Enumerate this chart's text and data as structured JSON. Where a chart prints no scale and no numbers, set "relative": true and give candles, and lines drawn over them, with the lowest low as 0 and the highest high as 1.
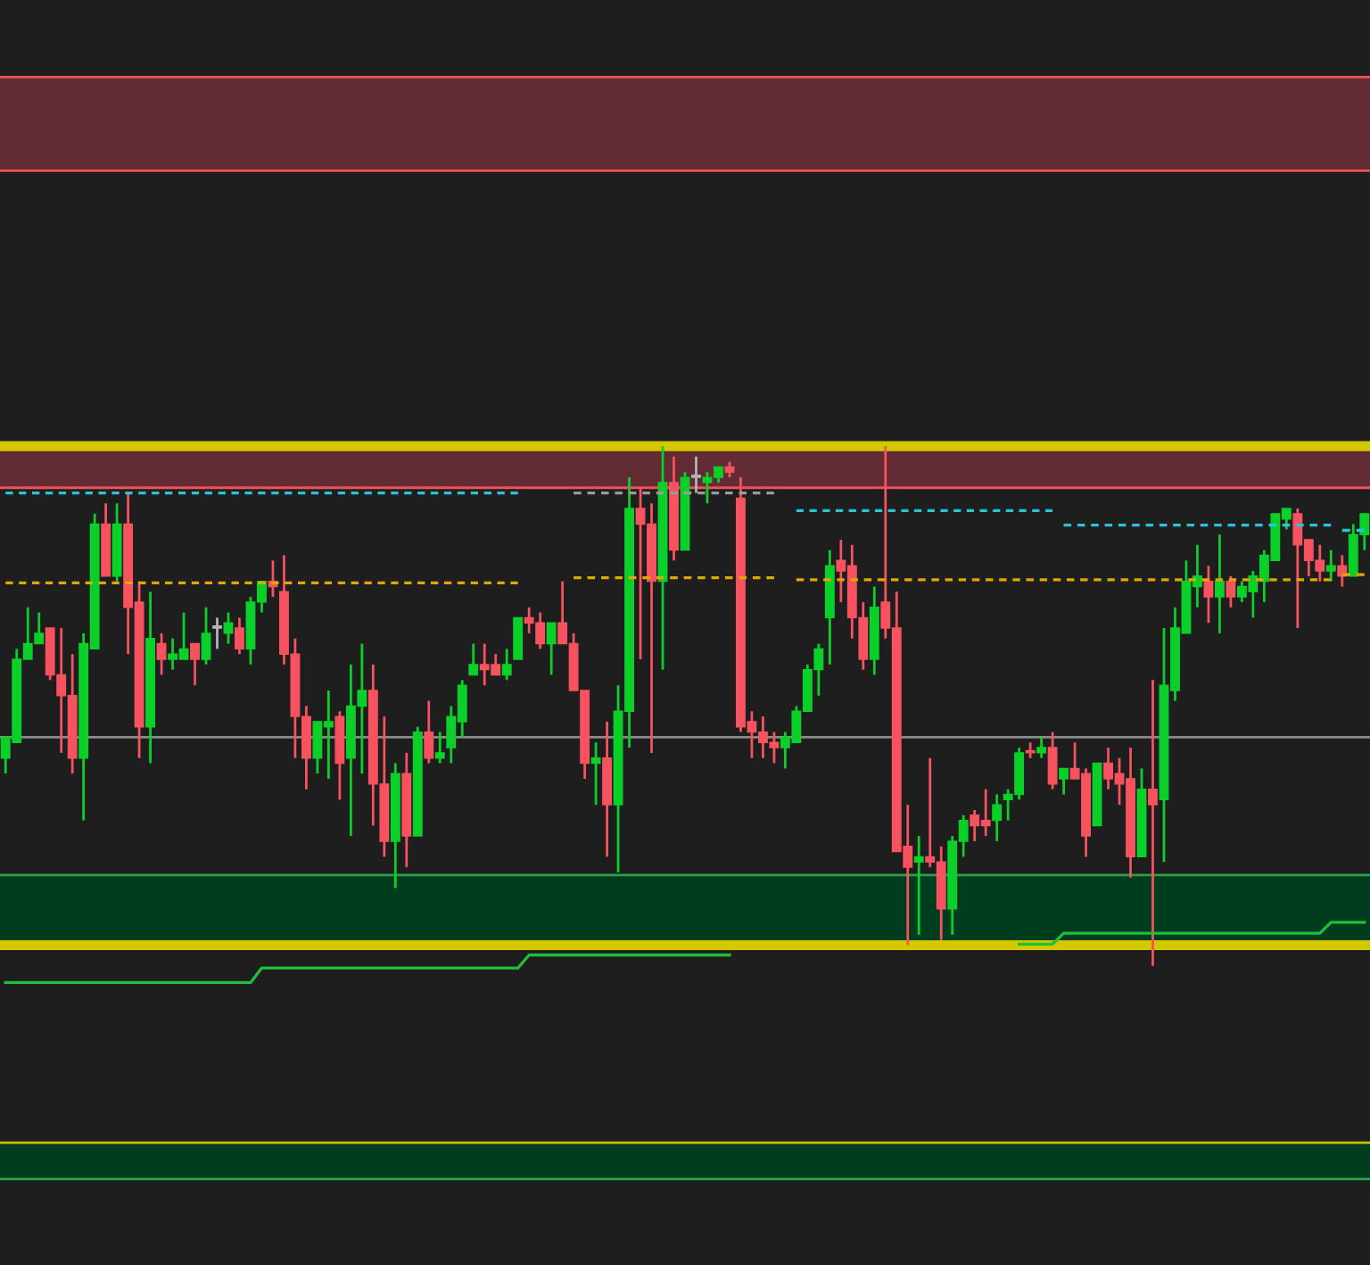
{
  "chart_data": {
    "type": "candlestick",
    "relative": true,
    "categories": [
      null,
      null,
      null,
      null,
      null,
      null,
      null,
      null,
      null,
      null,
      null,
      null,
      null,
      null,
      null,
      null,
      null,
      null,
      null,
      null,
      null,
      null,
      null,
      null,
      null,
      null,
      null,
      null,
      null,
      null,
      null,
      null,
      null,
      null,
      null,
      null,
      null,
      null,
      null,
      null,
      null,
      null,
      null,
      null,
      null,
      null,
      null,
      null,
      null,
      null,
      null,
      null,
      null,
      null,
      null,
      null,
      null,
      null,
      null,
      null,
      null,
      null,
      null,
      null,
      null,
      null,
      null,
      null,
      null,
      null,
      null,
      null,
      null,
      null,
      null,
      null,
      null,
      null,
      null,
      null,
      null,
      null,
      null,
      null,
      null,
      null,
      null,
      null,
      null,
      null,
      null,
      null,
      null,
      null,
      null,
      null,
      null,
      null,
      null,
      null,
      null,
      null,
      null,
      null,
      null,
      null,
      null,
      null,
      null,
      null,
      null,
      null,
      null,
      null,
      null,
      null,
      null,
      null,
      null,
      null,
      null,
      null,
      null
    ],
    "ohlc": [
      [
        0.4,
        0.44,
        0.37,
        0.44
      ],
      [
        0.43,
        0.61,
        0.43,
        0.59
      ],
      [
        0.59,
        0.69,
        0.59,
        0.62
      ],
      [
        0.62,
        0.68,
        0.62,
        0.64
      ],
      [
        0.65,
        0.65,
        0.55,
        0.56
      ],
      [
        0.56,
        0.65,
        0.41,
        0.52
      ],
      [
        0.52,
        0.6,
        0.37,
        0.4
      ],
      [
        0.4,
        0.64,
        0.28,
        0.62
      ],
      [
        0.61,
        0.87,
        0.61,
        0.85
      ],
      [
        0.85,
        0.89,
        0.75,
        0.75
      ],
      [
        0.75,
        0.89,
        0.74,
        0.85
      ],
      [
        0.85,
        0.91,
        0.6,
        0.69
      ],
      [
        0.7,
        0.74,
        0.4,
        0.46
      ],
      [
        0.46,
        0.72,
        0.39,
        0.63
      ],
      [
        0.62,
        0.64,
        0.56,
        0.59
      ],
      [
        0.59,
        0.63,
        0.57,
        0.6
      ],
      [
        0.59,
        0.68,
        0.59,
        0.61
      ],
      [
        0.62,
        0.62,
        0.54,
        0.59
      ],
      [
        0.59,
        0.69,
        0.58,
        0.64
      ],
      [
        0.65,
        0.67,
        0.61,
        0.65
      ],
      [
        0.64,
        0.68,
        0.62,
        0.66
      ],
      [
        0.65,
        0.67,
        0.6,
        0.61
      ],
      [
        0.61,
        0.71,
        0.58,
        0.7
      ],
      [
        0.7,
        0.74,
        0.68,
        0.74
      ],
      [
        0.74,
        0.78,
        0.71,
        0.73
      ],
      [
        0.72,
        0.79,
        0.58,
        0.6
      ],
      [
        0.6,
        0.63,
        0.4,
        0.48
      ],
      [
        0.48,
        0.5,
        0.34,
        0.4
      ],
      [
        0.4,
        0.47,
        0.37,
        0.47
      ],
      [
        0.46,
        0.53,
        0.36,
        0.47
      ],
      [
        0.48,
        0.49,
        0.32,
        0.39
      ],
      [
        0.4,
        0.58,
        0.25,
        0.5
      ],
      [
        0.5,
        0.62,
        0.37,
        0.53
      ],
      [
        0.53,
        0.58,
        0.27,
        0.35
      ],
      [
        0.35,
        0.48,
        0.21,
        0.24
      ],
      [
        0.24,
        0.39,
        0.15,
        0.37
      ],
      [
        0.37,
        0.41,
        0.19,
        0.25
      ],
      [
        0.25,
        0.46,
        0.25,
        0.45
      ],
      [
        0.45,
        0.51,
        0.39,
        0.4
      ],
      [
        0.4,
        0.45,
        0.39,
        0.41
      ],
      [
        0.42,
        0.5,
        0.39,
        0.48
      ],
      [
        0.47,
        0.55,
        0.44,
        0.54
      ],
      [
        0.56,
        0.62,
        0.56,
        0.58
      ],
      [
        0.58,
        0.62,
        0.54,
        0.57
      ],
      [
        0.58,
        0.6,
        0.56,
        0.56
      ],
      [
        0.56,
        0.61,
        0.55,
        0.58
      ],
      [
        0.59,
        0.67,
        0.59,
        0.67
      ],
      [
        0.67,
        0.69,
        0.64,
        0.66
      ],
      [
        0.66,
        0.68,
        0.61,
        0.62
      ],
      [
        0.62,
        0.66,
        0.56,
        0.66
      ],
      [
        0.66,
        0.74,
        0.62,
        0.62
      ],
      [
        0.62,
        0.64,
        0.53,
        0.53
      ],
      [
        0.53,
        0.53,
        0.36,
        0.39
      ],
      [
        0.39,
        0.43,
        0.31,
        0.4
      ],
      [
        0.4,
        0.47,
        0.21,
        0.31
      ],
      [
        0.31,
        0.54,
        0.18,
        0.49
      ],
      [
        0.49,
        0.94,
        0.42,
        0.88
      ],
      [
        0.88,
        0.92,
        0.59,
        0.85
      ],
      [
        0.85,
        0.89,
        0.41,
        0.74
      ],
      [
        0.74,
        1.0,
        0.57,
        0.93
      ],
      [
        0.93,
        0.98,
        0.78,
        0.8
      ],
      [
        0.8,
        0.95,
        0.8,
        0.94
      ],
      [
        0.94,
        0.98,
        0.91,
        0.94
      ],
      [
        0.93,
        0.95,
        0.89,
        0.94
      ],
      [
        0.94,
        0.96,
        0.93,
        0.96
      ],
      [
        0.96,
        0.97,
        0.94,
        0.95
      ],
      [
        0.9,
        0.94,
        0.45,
        0.46
      ],
      [
        0.47,
        0.49,
        0.4,
        0.45
      ],
      [
        0.45,
        0.48,
        0.4,
        0.43
      ],
      [
        0.43,
        0.45,
        0.39,
        0.42
      ],
      [
        0.42,
        0.45,
        0.38,
        0.44
      ],
      [
        0.43,
        0.5,
        0.43,
        0.49
      ],
      [
        0.49,
        0.58,
        0.49,
        0.57
      ],
      [
        0.57,
        0.62,
        0.52,
        0.61
      ],
      [
        0.67,
        0.8,
        0.58,
        0.77
      ],
      [
        0.78,
        0.82,
        0.7,
        0.76
      ],
      [
        0.77,
        0.81,
        0.63,
        0.67
      ],
      [
        0.67,
        0.7,
        0.57,
        0.59
      ],
      [
        0.59,
        0.73,
        0.56,
        0.69
      ],
      [
        0.7,
        1.0,
        0.63,
        0.65
      ],
      [
        0.65,
        0.72,
        0.22,
        0.22
      ],
      [
        0.23,
        0.31,
        0.04,
        0.19
      ],
      [
        0.2,
        0.25,
        0.06,
        0.21
      ],
      [
        0.21,
        0.4,
        0.19,
        0.2
      ],
      [
        0.2,
        0.23,
        0.05,
        0.11
      ],
      [
        0.11,
        0.25,
        0.06,
        0.24
      ],
      [
        0.24,
        0.29,
        0.21,
        0.28
      ],
      [
        0.29,
        0.3,
        0.24,
        0.27
      ],
      [
        0.28,
        0.34,
        0.25,
        0.27
      ],
      [
        0.28,
        0.33,
        0.24,
        0.31
      ],
      [
        0.32,
        0.34,
        0.28,
        0.33
      ],
      [
        0.33,
        0.42,
        0.32,
        0.41
      ],
      [
        0.41,
        0.43,
        0.4,
        0.41
      ],
      [
        0.41,
        0.44,
        0.4,
        0.42
      ],
      [
        0.42,
        0.45,
        0.34,
        0.35
      ],
      [
        0.36,
        0.38,
        0.33,
        0.38
      ],
      [
        0.38,
        0.43,
        0.36,
        0.36
      ],
      [
        0.37,
        0.38,
        0.21,
        0.25
      ],
      [
        0.27,
        0.39,
        0.27,
        0.39
      ],
      [
        0.39,
        0.42,
        0.34,
        0.36
      ],
      [
        0.37,
        0.4,
        0.31,
        0.35
      ],
      [
        0.36,
        0.42,
        0.17,
        0.21
      ],
      [
        0.21,
        0.38,
        0.21,
        0.34
      ],
      [
        0.34,
        0.55,
        0.0,
        0.31
      ],
      [
        0.32,
        0.65,
        0.2,
        0.54
      ],
      [
        0.53,
        0.69,
        0.51,
        0.65
      ],
      [
        0.64,
        0.78,
        0.64,
        0.74
      ],
      [
        0.73,
        0.81,
        0.69,
        0.75
      ],
      [
        0.74,
        0.77,
        0.66,
        0.71
      ],
      [
        0.71,
        0.83,
        0.64,
        0.74
      ],
      [
        0.74,
        0.75,
        0.69,
        0.71
      ],
      [
        0.71,
        0.74,
        0.7,
        0.73
      ],
      [
        0.72,
        0.76,
        0.67,
        0.75
      ],
      [
        0.74,
        0.8,
        0.7,
        0.79
      ],
      [
        0.78,
        0.87,
        0.78,
        0.87
      ],
      [
        0.86,
        0.88,
        0.84,
        0.88
      ],
      [
        0.87,
        0.88,
        0.65,
        0.81
      ],
      [
        0.82,
        0.82,
        0.75,
        0.78
      ],
      [
        0.78,
        0.81,
        0.74,
        0.76
      ],
      [
        0.76,
        0.8,
        0.74,
        0.77
      ],
      [
        0.77,
        0.79,
        0.73,
        0.75
      ],
      [
        0.75,
        0.85,
        0.75,
        0.83
      ],
      [
        0.83,
        0.87,
        0.8,
        0.87
      ]
    ],
    "colors": [
      "#0bd02a",
      "#0bd02a",
      "#0bd02a",
      "#0bd02a",
      "#f7525f",
      "#f7525f",
      "#f7525f",
      "#0bd02a",
      "#0bd02a",
      "#f7525f",
      "#0bd02a",
      "#f7525f",
      "#f7525f",
      "#0bd02a",
      "#f7525f",
      "#0bd02a",
      "#0bd02a",
      "#f7525f",
      "#0bd02a",
      "#b2b5be",
      "#0bd02a",
      "#f7525f",
      "#0bd02a",
      "#0bd02a",
      "#f7525f",
      "#f7525f",
      "#f7525f",
      "#f7525f",
      "#0bd02a",
      "#0bd02a",
      "#f7525f",
      "#0bd02a",
      "#0bd02a",
      "#f7525f",
      "#f7525f",
      "#0bd02a",
      "#f7525f",
      "#0bd02a",
      "#f7525f",
      "#0bd02a",
      "#0bd02a",
      "#0bd02a",
      "#0bd02a",
      "#f7525f",
      "#f7525f",
      "#0bd02a",
      "#0bd02a",
      "#f7525f",
      "#f7525f",
      "#0bd02a",
      "#f7525f",
      "#f7525f",
      "#f7525f",
      "#0bd02a",
      "#f7525f",
      "#0bd02a",
      "#0bd02a",
      "#f7525f",
      "#f7525f",
      "#0bd02a",
      "#f7525f",
      "#0bd02a",
      "#b2b5be",
      "#0bd02a",
      "#0bd02a",
      "#f7525f",
      "#f7525f",
      "#f7525f",
      "#f7525f",
      "#f7525f",
      "#0bd02a",
      "#0bd02a",
      "#0bd02a",
      "#0bd02a",
      "#0bd02a",
      "#f7525f",
      "#f7525f",
      "#f7525f",
      "#0bd02a",
      "#f7525f",
      "#f7525f",
      "#f7525f",
      "#0bd02a",
      "#f7525f",
      "#f7525f",
      "#0bd02a",
      "#0bd02a",
      "#f7525f",
      "#f7525f",
      "#0bd02a",
      "#0bd02a",
      "#0bd02a",
      "#f7525f",
      "#0bd02a",
      "#f7525f",
      "#0bd02a",
      "#f7525f",
      "#f7525f",
      "#0bd02a",
      "#f7525f",
      "#f7525f",
      "#f7525f",
      "#0bd02a",
      "#f7525f",
      "#0bd02a",
      "#0bd02a",
      "#0bd02a",
      "#0bd02a",
      "#f7525f",
      "#0bd02a",
      "#f7525f",
      "#0bd02a",
      "#0bd02a",
      "#0bd02a",
      "#0bd02a",
      "#0bd02a",
      "#f7525f",
      "#f7525f",
      "#f7525f",
      "#0bd02a",
      "#f7525f",
      "#0bd02a",
      "#0bd02a"
    ],
    "bands": [
      {
        "axis": "y",
        "from": 1.53,
        "to": 1.71,
        "color": "#632b33"
      },
      {
        "axis": "y",
        "from": 0.92,
        "to": 1.0,
        "color": "#632b33"
      },
      {
        "axis": "y",
        "from": 0.04,
        "to": 0.175,
        "color": "#003d1f"
      },
      {
        "axis": "y",
        "from": -0.41,
        "to": -0.34,
        "color": "#003d1f"
      }
    ],
    "ref_lines": [
      {
        "axis": "y",
        "value": 1.71,
        "color": "#f0505a"
      },
      {
        "axis": "y",
        "value": 1.53,
        "color": "#f0505a"
      },
      {
        "axis": "y",
        "value": 0.92,
        "color": "#f0505a"
      },
      {
        "axis": "y",
        "value": 0.175,
        "color": "#2e9e4a"
      },
      {
        "axis": "y",
        "value": -0.34,
        "color": "#c8c000"
      },
      {
        "axis": "y",
        "value": -0.41,
        "color": "#2e9e4a"
      },
      {
        "axis": "y",
        "value": 0.44,
        "color": "#8a8a8a"
      },
      {
        "axis": "y",
        "value": 1.0,
        "color": "#d4c800"
      },
      {
        "axis": "y",
        "value": 0.04,
        "color": "#d4c800"
      }
    ],
    "series": [
      {
        "type": "line",
        "line_style": "dashed",
        "color": "#29c5d6",
        "values": [
          0.91,
          0.91,
          0.91,
          0.91,
          0.91,
          0.91,
          0.91,
          0.91,
          0.91,
          0.91,
          0.91,
          0.91,
          0.91,
          0.91,
          0.91,
          0.91,
          0.91,
          0.91,
          0.91,
          0.91,
          0.91,
          0.91,
          0.91,
          0.91,
          0.91,
          0.91,
          0.91,
          0.91,
          0.91,
          0.91,
          0.91,
          0.91,
          0.91,
          0.91,
          0.91,
          0.91,
          0.91,
          0.91,
          0.91,
          0.91,
          0.91,
          0.91,
          0.91,
          0.91,
          0.91,
          0.91,
          0.91,
          null,
          null,
          null,
          null,
          null,
          null,
          null,
          null,
          null,
          null,
          null,
          null,
          null,
          null,
          null,
          null,
          null,
          null,
          null,
          null,
          null,
          null,
          null,
          null,
          null,
          null,
          null,
          null,
          null,
          null,
          null,
          null,
          null,
          null,
          null,
          null,
          null,
          null,
          null,
          null,
          null,
          null,
          null,
          null,
          null,
          null,
          null,
          null,
          null,
          null,
          null,
          null,
          null,
          null,
          null,
          null,
          null,
          null,
          null,
          null,
          null,
          null,
          null,
          null,
          null,
          null,
          null,
          null,
          null,
          null,
          null,
          null,
          null,
          null,
          null,
          null
        ]
      },
      {
        "type": "line",
        "line_style": "dashed",
        "color": "#9a9a9a",
        "values": [
          null,
          null,
          null,
          null,
          null,
          null,
          null,
          null,
          null,
          null,
          null,
          null,
          null,
          null,
          null,
          null,
          null,
          null,
          null,
          null,
          null,
          null,
          null,
          null,
          null,
          null,
          null,
          null,
          null,
          null,
          null,
          null,
          null,
          null,
          null,
          null,
          null,
          null,
          null,
          null,
          null,
          null,
          null,
          null,
          null,
          null,
          null,
          null,
          null,
          null,
          null,
          0.91,
          0.91,
          0.91,
          0.91,
          0.91,
          0.91,
          0.91,
          0.91,
          0.91,
          0.91,
          0.91,
          0.91,
          0.91,
          0.91,
          0.91,
          0.91,
          0.91,
          0.91,
          0.91,
          null,
          null,
          null,
          null,
          null,
          null,
          null,
          null,
          null,
          null,
          null,
          null,
          null,
          null,
          null,
          null,
          null,
          null,
          null,
          null,
          null,
          null,
          null,
          null,
          null,
          null,
          null,
          null,
          null,
          null,
          null,
          null,
          null,
          null,
          null,
          null,
          null,
          null,
          null,
          null,
          null,
          null,
          null,
          null,
          null,
          null,
          null,
          null,
          null,
          null,
          null,
          null,
          null
        ]
      },
      {
        "type": "line",
        "line_style": "dashed",
        "color": "#e0a800",
        "values": [
          0.737,
          0.737,
          0.737,
          0.737,
          0.737,
          0.737,
          0.737,
          0.737,
          0.737,
          0.737,
          0.737,
          0.737,
          0.737,
          0.737,
          0.737,
          0.737,
          0.737,
          0.737,
          0.737,
          0.737,
          0.737,
          0.737,
          0.737,
          0.737,
          0.737,
          0.737,
          0.737,
          0.737,
          0.737,
          0.737,
          0.737,
          0.737,
          0.737,
          0.737,
          0.737,
          0.737,
          0.737,
          0.737,
          0.737,
          0.737,
          0.737,
          0.737,
          0.737,
          0.737,
          0.737,
          0.737,
          0.737,
          null,
          null,
          null,
          null,
          null,
          null,
          null,
          null,
          null,
          null,
          null,
          null,
          null,
          null,
          null,
          null,
          null,
          null,
          null,
          null,
          null,
          null,
          null,
          null,
          null,
          null,
          null,
          null,
          null,
          null,
          null,
          null,
          null,
          null,
          null,
          null,
          null,
          null,
          null,
          null,
          null,
          null,
          null,
          null,
          null,
          null,
          null,
          null,
          null,
          null,
          null,
          null,
          null,
          null,
          null,
          null,
          null,
          null,
          null,
          null,
          null,
          null,
          null,
          null,
          null,
          null,
          null,
          null,
          null,
          null,
          null,
          null,
          null,
          null,
          null,
          null
        ]
      },
      {
        "type": "line",
        "line_style": "dashed",
        "color": "#e0a800",
        "values": [
          null,
          null,
          null,
          null,
          null,
          null,
          null,
          null,
          null,
          null,
          null,
          null,
          null,
          null,
          null,
          null,
          null,
          null,
          null,
          null,
          null,
          null,
          null,
          null,
          null,
          null,
          null,
          null,
          null,
          null,
          null,
          null,
          null,
          null,
          null,
          null,
          null,
          null,
          null,
          null,
          null,
          null,
          null,
          null,
          null,
          null,
          null,
          null,
          null,
          null,
          null,
          0.747,
          0.747,
          0.747,
          0.747,
          0.747,
          0.747,
          0.747,
          0.747,
          0.747,
          0.747,
          0.747,
          0.747,
          0.747,
          0.747,
          0.747,
          0.747,
          0.747,
          0.747,
          0.747,
          null,
          null,
          null,
          null,
          null,
          null,
          null,
          null,
          null,
          null,
          null,
          null,
          null,
          null,
          null,
          null,
          null,
          null,
          null,
          null,
          null,
          null,
          null,
          null,
          null,
          null,
          null,
          null,
          null,
          null,
          null,
          null,
          null,
          null,
          null,
          null,
          null,
          null,
          null,
          null,
          null,
          null,
          null,
          null,
          null,
          null,
          null,
          null,
          null,
          null,
          null,
          null,
          null
        ]
      },
      {
        "type": "line",
        "line_style": "dashed",
        "color": "#29c5d6",
        "values": [
          null,
          null,
          null,
          null,
          null,
          null,
          null,
          null,
          null,
          null,
          null,
          null,
          null,
          null,
          null,
          null,
          null,
          null,
          null,
          null,
          null,
          null,
          null,
          null,
          null,
          null,
          null,
          null,
          null,
          null,
          null,
          null,
          null,
          null,
          null,
          null,
          null,
          null,
          null,
          null,
          null,
          null,
          null,
          null,
          null,
          null,
          null,
          null,
          null,
          null,
          null,
          null,
          null,
          null,
          null,
          null,
          null,
          null,
          null,
          null,
          null,
          null,
          null,
          null,
          null,
          null,
          null,
          null,
          null,
          null,
          null,
          0.876,
          0.876,
          0.876,
          0.876,
          0.876,
          0.876,
          0.876,
          0.876,
          0.876,
          0.876,
          0.876,
          0.876,
          0.876,
          0.876,
          0.876,
          0.876,
          0.876,
          0.876,
          0.876,
          0.876,
          0.876,
          0.876,
          0.876,
          0.876,
          null,
          null,
          null,
          null,
          null,
          null,
          null,
          null,
          null,
          null,
          null,
          null,
          null,
          null,
          null,
          null,
          null,
          null,
          null,
          null,
          null,
          null,
          null,
          null,
          null,
          null,
          null,
          null
        ]
      },
      {
        "type": "line",
        "line_style": "dashed",
        "color": "#29c5d6",
        "values": [
          null,
          null,
          null,
          null,
          null,
          null,
          null,
          null,
          null,
          null,
          null,
          null,
          null,
          null,
          null,
          null,
          null,
          null,
          null,
          null,
          null,
          null,
          null,
          null,
          null,
          null,
          null,
          null,
          null,
          null,
          null,
          null,
          null,
          null,
          null,
          null,
          null,
          null,
          null,
          null,
          null,
          null,
          null,
          null,
          null,
          null,
          null,
          null,
          null,
          null,
          null,
          null,
          null,
          null,
          null,
          null,
          null,
          null,
          null,
          null,
          null,
          null,
          null,
          null,
          null,
          null,
          null,
          null,
          null,
          null,
          null,
          null,
          null,
          null,
          null,
          null,
          null,
          null,
          null,
          null,
          null,
          null,
          null,
          null,
          null,
          null,
          null,
          null,
          null,
          null,
          null,
          null,
          null,
          null,
          null,
          0.848,
          0.848,
          0.848,
          0.848,
          0.848,
          0.848,
          0.848,
          0.848,
          0.848,
          0.848,
          0.848,
          0.848,
          0.848,
          0.848,
          0.848,
          0.848,
          0.848,
          0.848,
          0.848,
          0.848,
          0.848,
          0.848,
          0.848,
          0.848,
          0.848,
          null,
          null,
          null
        ]
      },
      {
        "type": "line",
        "line_style": "dashed",
        "color": "#29c5d6",
        "values": [
          null,
          null,
          null,
          null,
          null,
          null,
          null,
          null,
          null,
          null,
          null,
          null,
          null,
          null,
          null,
          null,
          null,
          null,
          null,
          null,
          null,
          null,
          null,
          null,
          null,
          null,
          null,
          null,
          null,
          null,
          null,
          null,
          null,
          null,
          null,
          null,
          null,
          null,
          null,
          null,
          null,
          null,
          null,
          null,
          null,
          null,
          null,
          null,
          null,
          null,
          null,
          null,
          null,
          null,
          null,
          null,
          null,
          null,
          null,
          null,
          null,
          null,
          null,
          null,
          null,
          null,
          null,
          null,
          null,
          null,
          null,
          null,
          null,
          null,
          null,
          null,
          null,
          null,
          null,
          null,
          null,
          null,
          null,
          null,
          null,
          null,
          null,
          null,
          null,
          null,
          null,
          null,
          null,
          null,
          null,
          null,
          null,
          null,
          null,
          null,
          null,
          null,
          null,
          null,
          null,
          null,
          null,
          null,
          null,
          null,
          null,
          null,
          null,
          null,
          null,
          null,
          null,
          null,
          null,
          null,
          0.838,
          0.838,
          0.838
        ]
      },
      {
        "type": "line",
        "line_style": "dashed",
        "color": "#e0a800",
        "values": [
          null,
          null,
          null,
          null,
          null,
          null,
          null,
          null,
          null,
          null,
          null,
          null,
          null,
          null,
          null,
          null,
          null,
          null,
          null,
          null,
          null,
          null,
          null,
          null,
          null,
          null,
          null,
          null,
          null,
          null,
          null,
          null,
          null,
          null,
          null,
          null,
          null,
          null,
          null,
          null,
          null,
          null,
          null,
          null,
          null,
          null,
          null,
          null,
          null,
          null,
          null,
          null,
          null,
          null,
          null,
          null,
          null,
          null,
          null,
          null,
          null,
          null,
          null,
          null,
          null,
          null,
          null,
          null,
          null,
          null,
          null,
          0.743,
          0.743,
          0.743,
          0.743,
          0.743,
          0.743,
          0.743,
          0.743,
          0.743,
          0.743,
          0.743,
          0.743,
          0.743,
          0.743,
          0.743,
          0.743,
          0.743,
          0.743,
          0.743,
          0.743,
          0.743,
          0.743,
          0.743,
          0.743,
          0.743,
          0.743,
          0.743,
          0.743,
          0.743,
          0.743,
          0.743,
          0.743,
          0.743,
          0.743,
          0.743,
          0.743,
          0.743,
          0.743,
          0.743,
          0.743,
          0.743,
          0.743,
          0.743,
          0.743,
          0.743,
          0.743,
          0.743,
          0.743,
          0.743,
          null,
          null,
          null
        ]
      },
      {
        "type": "line",
        "line_style": "dashed",
        "color": "#e0a800",
        "values": [
          null,
          null,
          null,
          null,
          null,
          null,
          null,
          null,
          null,
          null,
          null,
          null,
          null,
          null,
          null,
          null,
          null,
          null,
          null,
          null,
          null,
          null,
          null,
          null,
          null,
          null,
          null,
          null,
          null,
          null,
          null,
          null,
          null,
          null,
          null,
          null,
          null,
          null,
          null,
          null,
          null,
          null,
          null,
          null,
          null,
          null,
          null,
          null,
          null,
          null,
          null,
          null,
          null,
          null,
          null,
          null,
          null,
          null,
          null,
          null,
          null,
          null,
          null,
          null,
          null,
          null,
          null,
          null,
          null,
          null,
          null,
          null,
          null,
          null,
          null,
          null,
          null,
          null,
          null,
          null,
          null,
          null,
          null,
          null,
          null,
          null,
          null,
          null,
          null,
          null,
          null,
          null,
          null,
          null,
          null,
          null,
          null,
          null,
          null,
          null,
          null,
          null,
          null,
          null,
          null,
          null,
          null,
          null,
          null,
          null,
          null,
          null,
          null,
          null,
          null,
          null,
          null,
          null,
          null,
          null,
          0.753,
          0.753,
          0.753
        ]
      },
      {
        "type": "line",
        "line_style": "solid",
        "color": "#1fbf3a",
        "values": [
          -0.032,
          -0.032,
          -0.032,
          -0.032,
          -0.032,
          -0.032,
          -0.032,
          -0.032,
          -0.032,
          -0.032,
          -0.032,
          -0.032,
          -0.032,
          -0.032,
          -0.032,
          -0.032,
          -0.032,
          -0.032,
          -0.032,
          -0.032,
          -0.032,
          -0.032,
          -0.032,
          -0.004,
          -0.004,
          -0.004,
          -0.004,
          -0.004,
          -0.004,
          -0.004,
          -0.004,
          -0.004,
          -0.004,
          -0.004,
          -0.004,
          -0.004,
          -0.004,
          -0.004,
          -0.004,
          -0.004,
          -0.004,
          -0.004,
          -0.004,
          -0.004,
          -0.004,
          -0.004,
          -0.004,
          0.021,
          0.021,
          0.021,
          0.021,
          0.021,
          0.021,
          0.021,
          0.021,
          0.021,
          0.021,
          0.021,
          0.021,
          0.021,
          0.021,
          0.021,
          0.021,
          0.021,
          0.021,
          0.021,
          null,
          null,
          null,
          null,
          null,
          null,
          null,
          null,
          null,
          null,
          null,
          null,
          null,
          null,
          null,
          null,
          null,
          null,
          null,
          null,
          null,
          null,
          null,
          null,
          null,
          0.042,
          0.042,
          0.042,
          0.042,
          0.063,
          0.063,
          0.063,
          0.063,
          0.063,
          0.063,
          0.063,
          0.063,
          0.063,
          0.063,
          0.063,
          0.063,
          0.063,
          0.063,
          0.063,
          0.063,
          0.063,
          0.063,
          0.063,
          0.063,
          0.063,
          0.063,
          0.063,
          0.063,
          0.084,
          0.084,
          0.084,
          0.084
        ]
      }
    ]
  }
}
